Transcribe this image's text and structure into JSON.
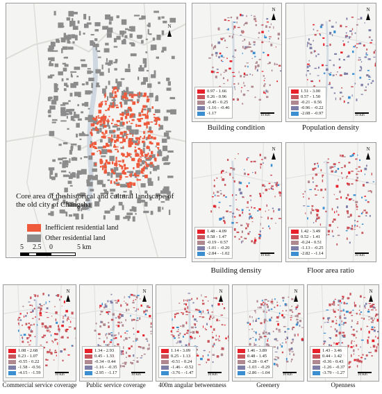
{
  "main_map": {
    "title": "Core area of the historical and cultural landscape of the old city of Changsha",
    "legend": [
      {
        "label": "Inefficient residential land",
        "color": "#f05a3c"
      },
      {
        "label": "Other residential land",
        "color": "#8c8c8c"
      }
    ],
    "scale_labels": [
      "5",
      "2.5",
      "0",
      "5 km"
    ],
    "north": "N"
  },
  "panels": [
    {
      "caption": "Building condition",
      "scale": "10 Km",
      "north": "N",
      "legend": [
        "0.97 - 1.66",
        "0.26 - 0.96",
        "-0.45 - 0.25",
        "-1.16 - -0.46",
        "-1.17"
      ]
    },
    {
      "caption": "Population density",
      "scale": "10 Km",
      "north": "N",
      "legend": [
        "1.51 - 3.00",
        "0.57 - 1.50",
        "-0.21 - 0.56",
        "-0.96 - -0.22",
        "-2.08 - -0.97"
      ]
    },
    {
      "caption": "Building density",
      "scale": "10 Km",
      "north": "N",
      "legend": [
        "1.48 - 4.09",
        "0.58 - 1.47",
        "-0.19 - 0.57",
        "-1.01 - -0.20",
        "-2.84 - -1.02"
      ]
    },
    {
      "caption": "Floor area ratio",
      "scale": "10 Km",
      "north": "N",
      "legend": [
        "1.42 - 3.49",
        "0.52 - 1.41",
        "-0.24 - 0.51",
        "-1.13 - -0.25",
        "-2.82 - -1.14"
      ]
    },
    {
      "caption": "Commercial service coverage",
      "scale": "10 Km",
      "north": "N",
      "legend": [
        "1.08 - 2.68",
        "0.23 - 1.07",
        "-0.55 - 0.22",
        "-1.58 - -0.56",
        "-4.15 - -1.59"
      ]
    },
    {
      "caption": "Public service coverage",
      "scale": "10 Km",
      "north": "N",
      "legend": [
        "1.34 - 2.93",
        "0.45 - 1.33",
        "-0.34 - 0.44",
        "-1.16 - -0.35",
        "-2.95 - -1.17"
      ]
    },
    {
      "caption": "400m angular betweenness",
      "scale": "10 Km",
      "north": "N",
      "legend": [
        "1.14 - 3.09",
        "0.25 - 1.13",
        "-0.51 - 0.24",
        "-1.46 - -0.52",
        "-3.76 - -1.47"
      ]
    },
    {
      "caption": "Greenery",
      "scale": "10 Km",
      "north": "N",
      "legend": [
        "1.46 - 3.89",
        "0.48 - 1.45",
        "-0.28 - 0.47",
        "-1.03 - -0.29",
        "-2.86 - -1.04"
      ]
    },
    {
      "caption": "Openness",
      "scale": "10 Km",
      "north": "N",
      "legend": [
        "1.43 - 3.46",
        "0.44 - 1.42",
        "-0.36 - 0.43",
        "-1.26 - -0.37",
        "-3.79 - -1.27"
      ]
    }
  ],
  "legend_colors": [
    "#e8202a",
    "#c9555c",
    "#b08890",
    "#7d7fa8",
    "#3b8fd0"
  ]
}
